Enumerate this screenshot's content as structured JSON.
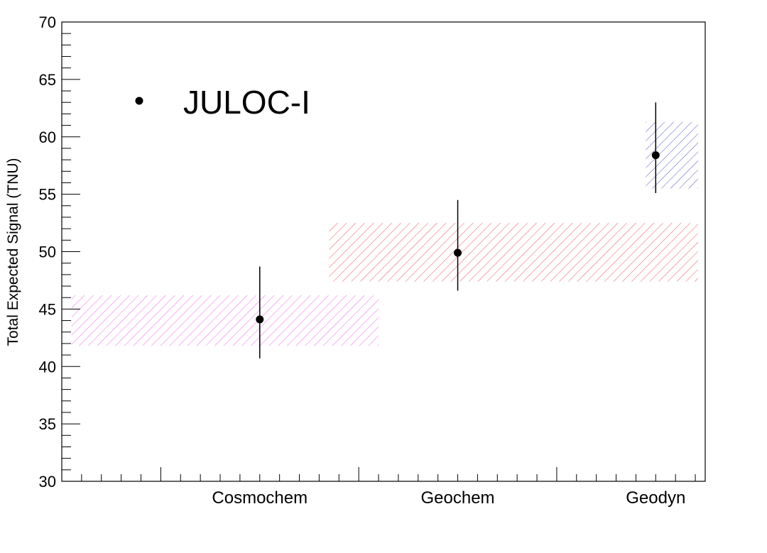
{
  "chart_data": {
    "type": "scatter",
    "title": "",
    "xlabel": "",
    "ylabel": "Total Expected Signal (TNU)",
    "ylim": [
      30,
      70
    ],
    "yticks": [
      "30",
      "35",
      "40",
      "45",
      "50",
      "55",
      "60",
      "65",
      "70"
    ],
    "categories": [
      "Cosmochem",
      "Geochem",
      "Geodyn"
    ],
    "grid": false,
    "legend": {
      "label": "JULOC-I",
      "placement": "top-left"
    },
    "series": [
      {
        "name": "JULOC-I",
        "points": [
          {
            "category": "Cosmochem",
            "y": 44.1,
            "err_low": 3.4,
            "err_high": 4.6
          },
          {
            "category": "Geochem",
            "y": 49.9,
            "err_low": 3.3,
            "err_high": 4.6
          },
          {
            "category": "Geodyn",
            "y": 58.4,
            "err_low": 3.3,
            "err_high": 4.6
          }
        ]
      }
    ],
    "bands": [
      {
        "model": "Cosmochem",
        "ymin": 41.8,
        "ymax": 46.2,
        "x_start": 0.05,
        "x_end": 1.6,
        "color": "#ee66ee"
      },
      {
        "model": "Geochem",
        "ymin": 47.4,
        "ymax": 52.5,
        "x_start": 1.35,
        "x_end": 3.55,
        "color": "#ee5555"
      },
      {
        "model": "Geodyn",
        "ymin": 55.5,
        "ymax": 61.3,
        "x_start": 2.95,
        "x_end": 4.2,
        "color": "#5555cc"
      }
    ],
    "x_ticks": {
      "major": [
        0.5,
        1.5,
        2.5,
        3.5
      ],
      "minor_step": 0.1
    }
  }
}
